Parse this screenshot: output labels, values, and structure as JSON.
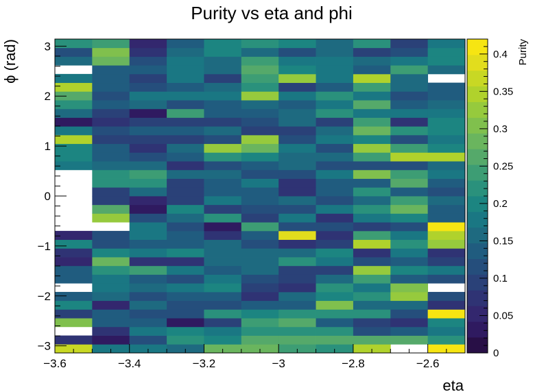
{
  "chart_data": {
    "type": "heatmap",
    "title": "Purity vs eta and phi",
    "xlabel": "eta",
    "ylabel": "ϕ (rad)",
    "zlabel": "Purity",
    "xlim": [
      -3.6,
      -2.5
    ],
    "ylim": [
      -3.1416,
      3.1416
    ],
    "zlim": [
      0,
      0.42
    ],
    "x_ticks": [
      "−3.6",
      "−3.4",
      "−3.2",
      "−3",
      "−2.8",
      "−2.6"
    ],
    "x_tick_values": [
      -3.6,
      -3.4,
      -3.2,
      -3.0,
      -2.8,
      -2.6
    ],
    "y_ticks": [
      "−3",
      "−2",
      "−1",
      "0",
      "1",
      "2",
      "3"
    ],
    "y_tick_values": [
      -3,
      -2,
      -1,
      0,
      1,
      2,
      3
    ],
    "z_ticks": [
      "0",
      "0.05",
      "0.1",
      "0.15",
      "0.2",
      "0.25",
      "0.3",
      "0.35",
      "0.4"
    ],
    "z_tick_values": [
      0,
      0.05,
      0.1,
      0.15,
      0.2,
      0.25,
      0.3,
      0.35,
      0.4
    ],
    "x_bin_edges": [
      -3.6,
      -3.5,
      -3.4,
      -3.3,
      -3.2,
      -3.1,
      -3.0,
      -2.9,
      -2.8,
      -2.7,
      -2.6,
      -2.5
    ],
    "y_bins": 36,
    "grid": false,
    "colormap": "viridis",
    "palette": [
      "#280f46",
      "#2f1a60",
      "#33276e",
      "#2f3374",
      "#2a4178",
      "#254e7c",
      "#205c7f",
      "#1e6a80",
      "#1a7783",
      "#1c8581",
      "#2a917c",
      "#3d9d74",
      "#55a96a",
      "#6ab55e",
      "#80c04d",
      "#96ca3d",
      "#b0d22c",
      "#c8d824",
      "#e2dd1d",
      "#f6e512"
    ],
    "values": [
      [
        0.37,
        0.17,
        0.17,
        0.15,
        0.28,
        0.28,
        0.24,
        0.21,
        0.34,
        null,
        0.41
      ],
      [
        0.07,
        0.04,
        0.12,
        0.22,
        0.19,
        0.27,
        0.27,
        0.26,
        0.27,
        0.26,
        0.22
      ],
      [
        null,
        0.08,
        0.18,
        0.19,
        0.18,
        0.22,
        0.22,
        0.22,
        0.12,
        0.13,
        0.17
      ],
      [
        0.31,
        0.13,
        0.14,
        0.04,
        0.09,
        0.25,
        0.26,
        0.14,
        0.1,
        0.07,
        0.19
      ],
      [
        0.1,
        0.14,
        0.12,
        0.11,
        0.23,
        0.19,
        0.22,
        0.22,
        0.23,
        0.12,
        0.41
      ],
      [
        0.19,
        0.05,
        0.16,
        0.11,
        0.11,
        0.14,
        0.14,
        0.31,
        0.15,
        0.15,
        0.07
      ],
      [
        0.13,
        0.16,
        0.11,
        0.14,
        0.14,
        0.08,
        0.16,
        0.19,
        0.21,
        0.33,
        0.11
      ],
      [
        null,
        0.17,
        0.16,
        0.18,
        0.2,
        0.1,
        0.08,
        0.23,
        0.17,
        0.31,
        null
      ],
      [
        0.14,
        0.17,
        0.13,
        0.11,
        0.18,
        0.12,
        0.1,
        0.15,
        0.24,
        0.14,
        0.12
      ],
      [
        0.14,
        0.23,
        0.24,
        0.18,
        0.13,
        0.15,
        0.1,
        0.09,
        0.32,
        0.2,
        0.17
      ],
      [
        0.06,
        0.29,
        0.07,
        0.07,
        0.15,
        0.16,
        0.22,
        0.17,
        0.12,
        0.14,
        0.1
      ],
      [
        0.07,
        0.2,
        0.17,
        0.19,
        0.16,
        0.16,
        0.15,
        0.19,
        0.07,
        0.18,
        0.07
      ],
      [
        0.19,
        0.11,
        0.13,
        0.13,
        0.15,
        0.12,
        0.08,
        0.09,
        0.34,
        0.22,
        0.32
      ],
      [
        0.06,
        0.12,
        0.18,
        0.14,
        0.07,
        0.14,
        0.39,
        0.07,
        0.24,
        0.18,
        0.34
      ],
      [
        null,
        null,
        0.17,
        0.11,
        0.04,
        0.25,
        0.11,
        0.12,
        0.1,
        0.11,
        0.4
      ],
      [
        null,
        0.33,
        0.12,
        0.15,
        0.21,
        0.1,
        0.17,
        0.08,
        0.17,
        0.19,
        0.14
      ],
      [
        null,
        0.26,
        0.04,
        0.2,
        0.09,
        0.11,
        0.12,
        0.18,
        0.22,
        0.29,
        0.13
      ],
      [
        null,
        0.09,
        0.06,
        0.1,
        0.17,
        0.14,
        0.15,
        0.11,
        0.16,
        0.24,
        0.16
      ],
      [
        null,
        0.09,
        0.15,
        0.1,
        0.14,
        0.13,
        0.08,
        0.13,
        0.23,
        0.13,
        0.12
      ],
      [
        null,
        0.23,
        0.21,
        0.09,
        0.14,
        0.17,
        0.07,
        0.14,
        0.14,
        0.26,
        0.14
      ],
      [
        null,
        0.22,
        0.24,
        0.16,
        0.16,
        0.12,
        0.12,
        0.17,
        0.31,
        0.25,
        0.17
      ],
      [
        0.18,
        0.16,
        0.16,
        0.07,
        0.12,
        0.14,
        0.16,
        0.12,
        0.11,
        0.11,
        0.16
      ],
      [
        0.2,
        0.14,
        0.12,
        0.14,
        0.22,
        0.2,
        0.16,
        0.15,
        0.24,
        0.34,
        0.35
      ],
      [
        0.2,
        0.14,
        0.08,
        0.15,
        0.33,
        0.29,
        0.18,
        0.12,
        0.33,
        0.24,
        0.19
      ],
      [
        0.35,
        0.09,
        0.1,
        0.09,
        0.12,
        0.33,
        0.12,
        0.18,
        0.2,
        0.11,
        0.18
      ],
      [
        0.18,
        0.12,
        0.14,
        0.14,
        0.16,
        0.09,
        0.1,
        0.16,
        0.28,
        0.22,
        0.19
      ],
      [
        0.04,
        0.07,
        0.09,
        0.1,
        0.1,
        0.11,
        0.16,
        0.1,
        0.25,
        0.08,
        0.19
      ],
      [
        0.16,
        0.09,
        0.04,
        0.25,
        0.14,
        0.14,
        0.16,
        0.22,
        0.17,
        0.17,
        0.18
      ],
      [
        0.22,
        0.13,
        0.16,
        0.11,
        0.14,
        0.16,
        0.13,
        0.17,
        0.26,
        0.14,
        0.16
      ],
      [
        0.26,
        0.12,
        0.17,
        0.18,
        0.17,
        0.33,
        0.18,
        0.21,
        0.18,
        0.12,
        0.14
      ],
      [
        0.34,
        0.14,
        0.11,
        0.14,
        0.16,
        0.22,
        0.1,
        0.14,
        0.25,
        0.16,
        0.13
      ],
      [
        0.17,
        0.14,
        0.1,
        0.17,
        0.09,
        0.24,
        0.33,
        0.18,
        0.35,
        0.16,
        null
      ],
      [
        null,
        0.14,
        0.13,
        0.18,
        0.16,
        0.26,
        0.19,
        0.17,
        0.13,
        0.25,
        0.15
      ],
      [
        0.15,
        0.29,
        0.12,
        0.18,
        0.16,
        0.24,
        0.18,
        0.17,
        0.15,
        0.18,
        0.19
      ],
      [
        0.12,
        0.3,
        0.08,
        0.16,
        0.19,
        0.16,
        0.11,
        0.15,
        0.09,
        0.12,
        0.2
      ],
      [
        0.21,
        0.25,
        0.06,
        0.13,
        0.19,
        0.23,
        0.19,
        0.16,
        0.21,
        0.1,
        0.18
      ]
    ]
  }
}
